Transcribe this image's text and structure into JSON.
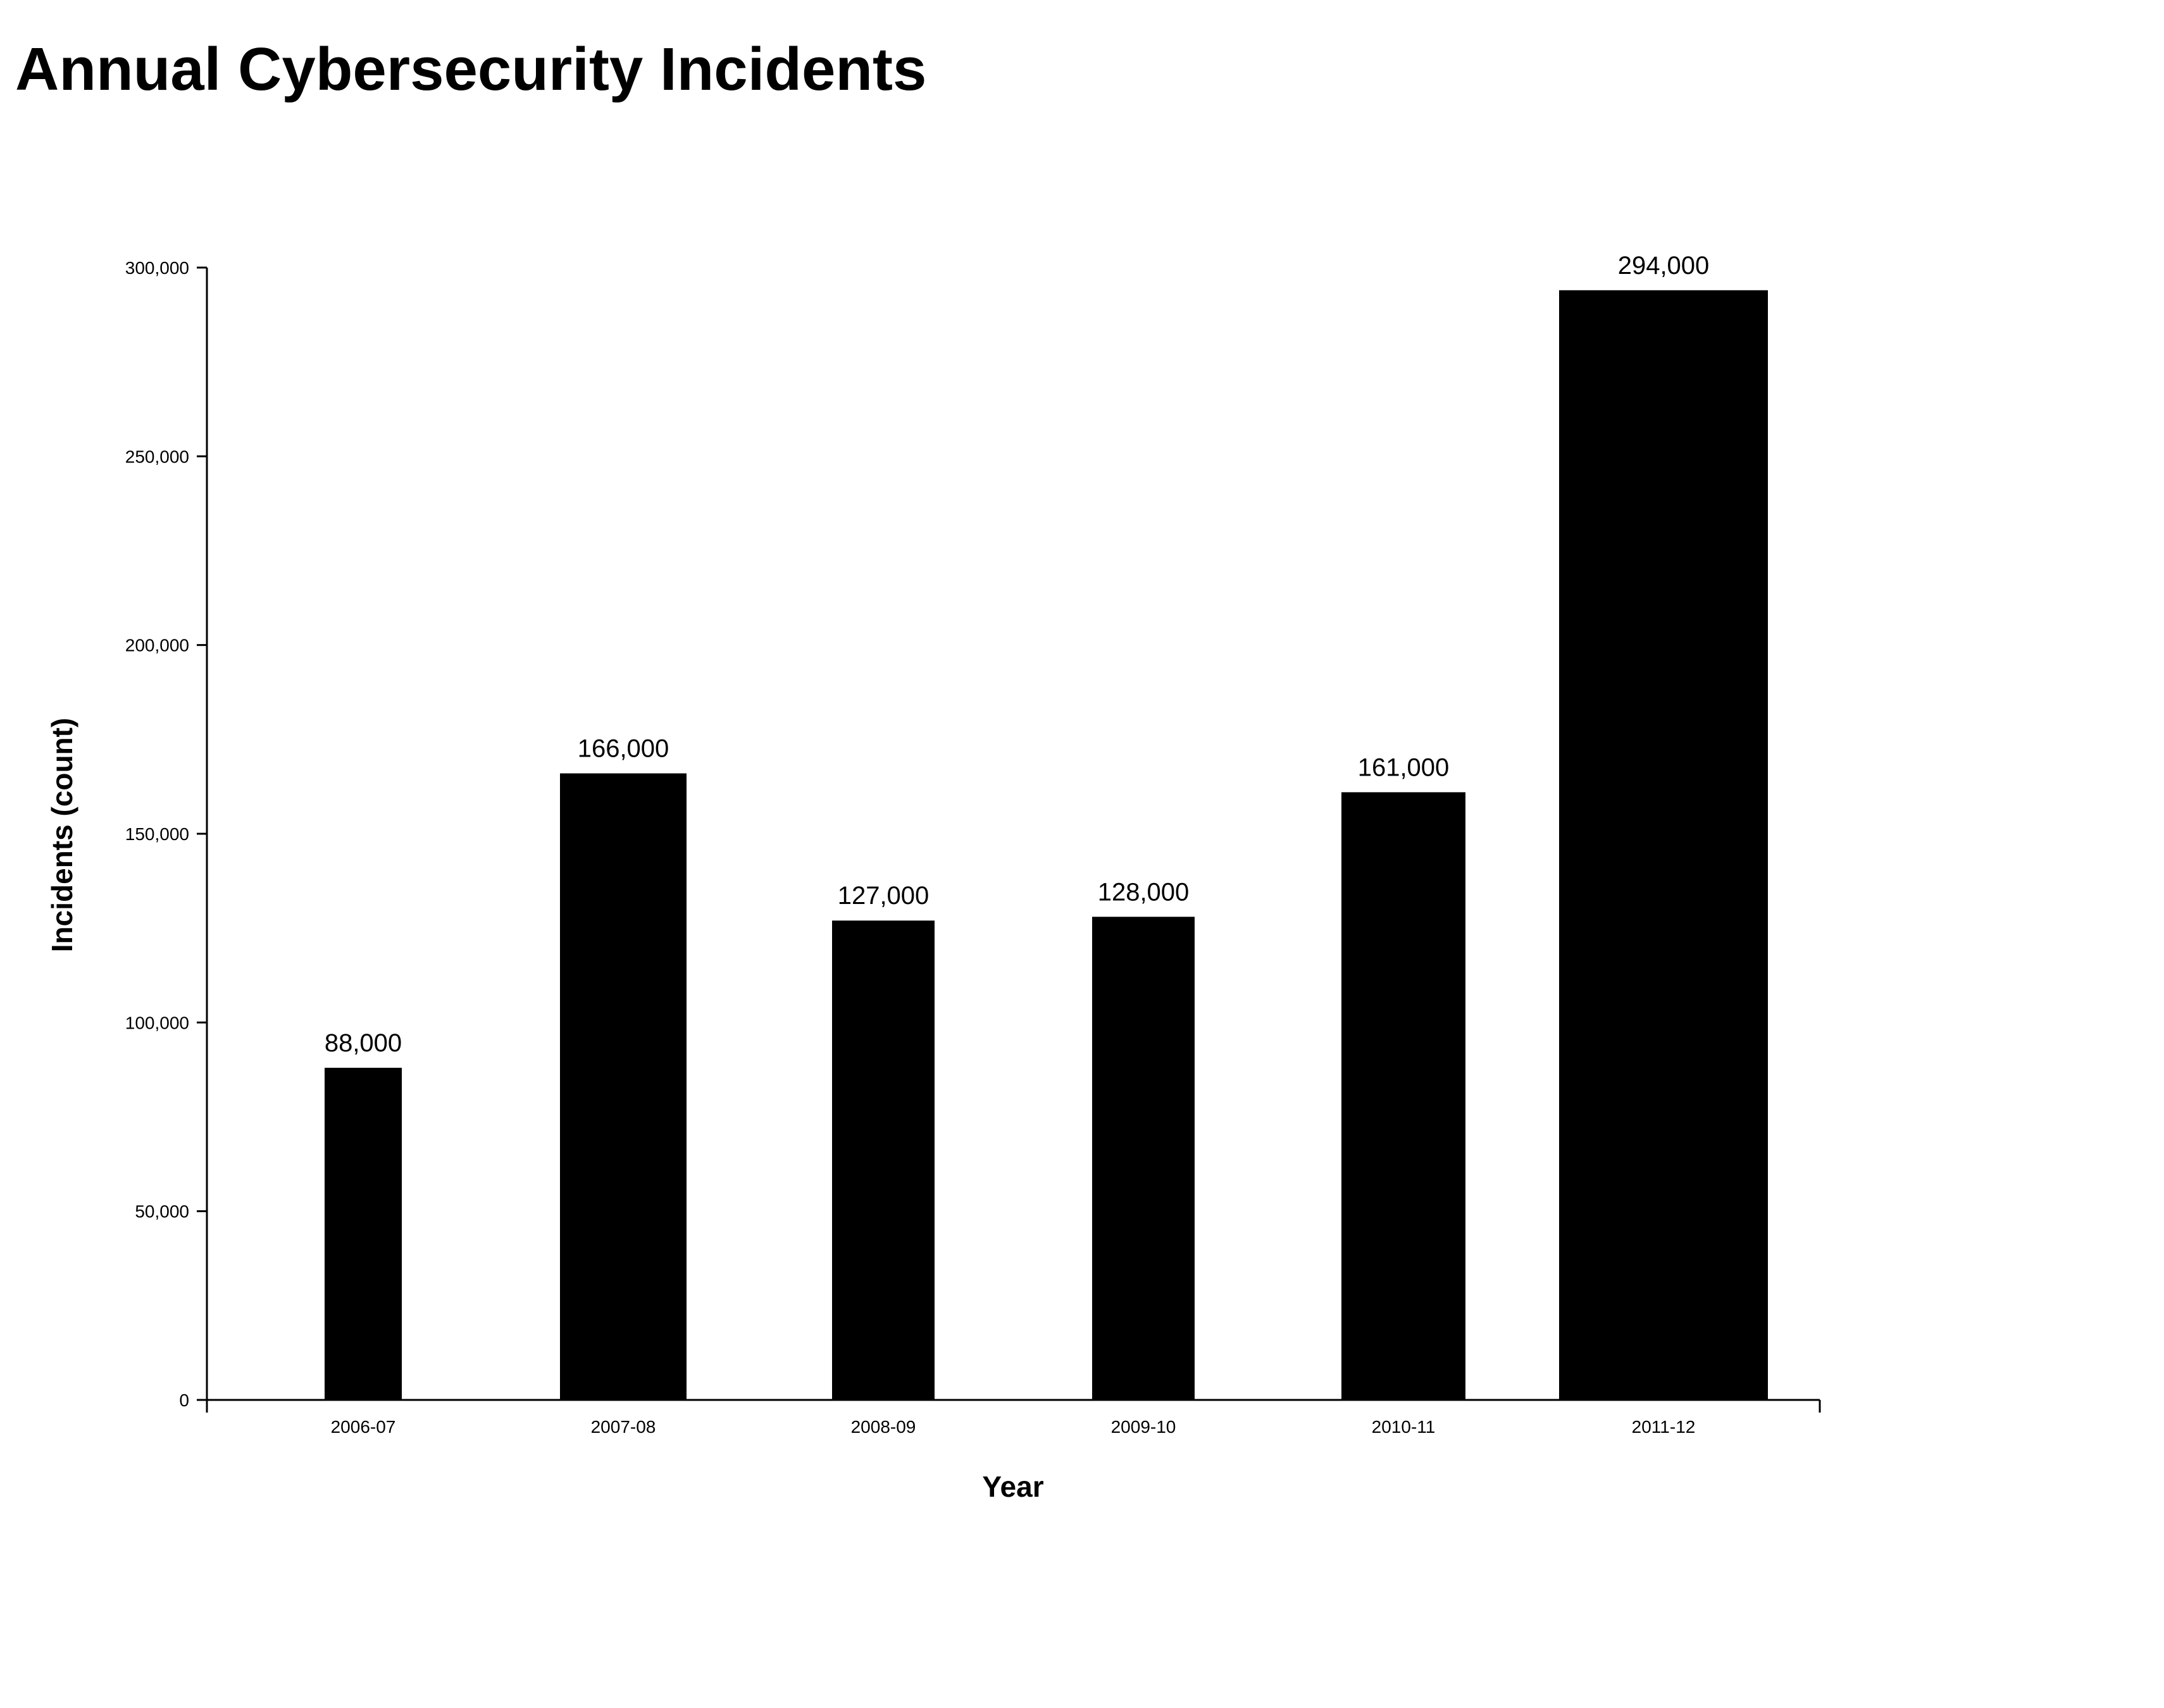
{
  "chart_data": {
    "type": "bar",
    "title": "Annual Cybersecurity Incidents",
    "xlabel": "Year",
    "ylabel": "Incidents (count)",
    "categories": [
      "2006-07",
      "2007-08",
      "2008-09",
      "2009-10",
      "2010-11",
      "2011-12"
    ],
    "values": [
      88000,
      166000,
      127000,
      128000,
      161000,
      294000
    ],
    "value_labels": [
      "88,000",
      "166,000",
      "127,000",
      "128,000",
      "161,000",
      "294,000"
    ],
    "ylim": [
      0,
      300000
    ],
    "yticks": [
      0,
      50000,
      100000,
      150000,
      200000,
      250000,
      300000
    ],
    "ytick_labels": [
      "0",
      "50,000",
      "100,000",
      "150,000",
      "200,000",
      "250,000",
      "300,000"
    ],
    "grid": false,
    "legend": "none",
    "bar_color": "#000000"
  }
}
